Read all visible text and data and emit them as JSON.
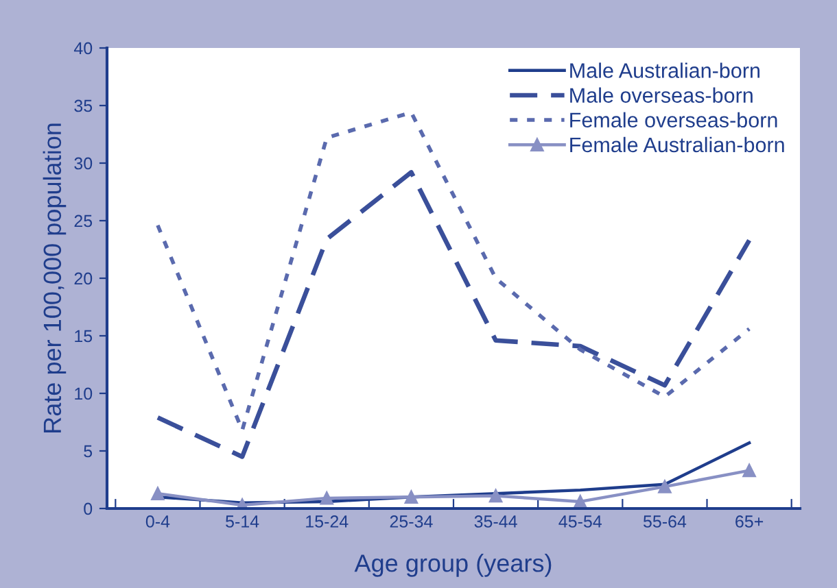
{
  "chart_data": {
    "type": "line",
    "xlabel": "Age group (years)",
    "ylabel": "Rate per 100,000 population",
    "categories": [
      "0-4",
      "5-14",
      "15-24",
      "25-34",
      "35-44",
      "45-54",
      "55-64",
      "65+"
    ],
    "series": [
      {
        "name": "Male Australian-born",
        "color": "#1f3d8c",
        "line_style": "solid",
        "marker": "none",
        "values": [
          1.0,
          0.5,
          0.6,
          1.0,
          1.3,
          1.6,
          2.1,
          5.7
        ]
      },
      {
        "name": "Male overseas-born",
        "color": "#3a4f9a",
        "line_style": "dashed",
        "marker": "none",
        "values": [
          7.9,
          4.5,
          23.4,
          29.2,
          14.6,
          14.1,
          10.7,
          23.3
        ]
      },
      {
        "name": "Female overseas-born",
        "color": "#5a6aae",
        "line_style": "dotted",
        "marker": "none",
        "values": [
          24.6,
          6.8,
          32.2,
          34.4,
          20.0,
          13.8,
          9.7,
          15.6
        ]
      },
      {
        "name": "Female Australian-born",
        "color": "#8890c4",
        "line_style": "solid",
        "marker": "triangle",
        "values": [
          1.3,
          0.3,
          0.9,
          1.0,
          1.1,
          0.6,
          1.9,
          3.3
        ]
      }
    ],
    "ylim": [
      0,
      40
    ],
    "yticks": [
      0,
      5,
      10,
      15,
      20,
      25,
      30,
      35,
      40
    ],
    "grid": false,
    "legend": "top right"
  }
}
